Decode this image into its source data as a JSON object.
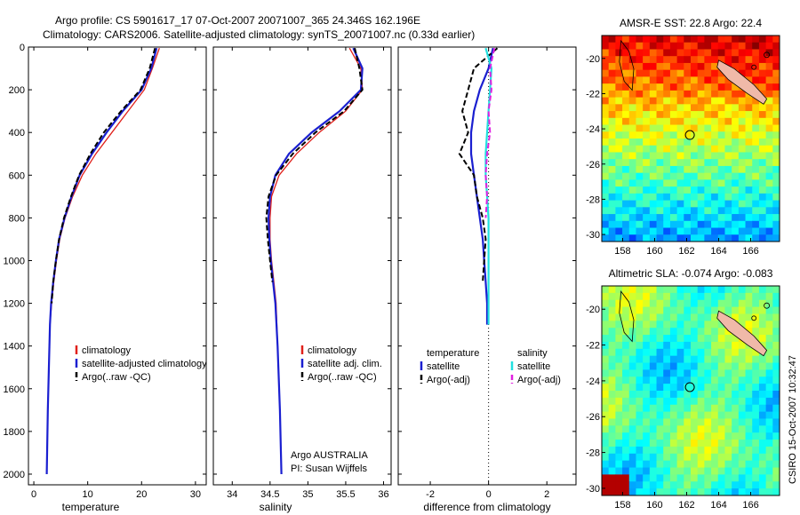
{
  "header": {
    "line1": "Argo profile: CS 5901617_17 07-Oct-2007 20071007_365 24.346S 162.196E",
    "line2": "Climatology: CARS2006. Satellite-adjusted climatology: synTS_20071007.nc (0.33d earlier)"
  },
  "side_label": "CSIRO 15-Oct-2007 10:32:47",
  "colors": {
    "clim": "#e0201a",
    "sat": "#1a1fd0",
    "argo": "#000000",
    "sal_sat": "#22e0e0",
    "sal_argo": "#e020e0"
  },
  "chart_data": [
    {
      "type": "line",
      "id": "temperature",
      "xlabel": "temperature",
      "ylabel": "",
      "xlim": [
        -1,
        32
      ],
      "ylim": [
        2050,
        0
      ],
      "x_ticks": [
        0,
        10,
        20,
        30
      ],
      "y_ticks": [
        0,
        200,
        400,
        600,
        800,
        1000,
        1200,
        1400,
        1600,
        1800,
        2000
      ],
      "legend": [
        "climatology",
        "satellite-adjusted climatology",
        "Argo(..raw -QC)"
      ],
      "series": [
        {
          "name": "climatology",
          "style": "clim",
          "x": [
            23.3,
            22.0,
            20.5,
            17.5,
            14.5,
            11.5,
            9.0,
            7.2,
            5.8,
            4.8,
            4.2,
            3.7,
            3.3,
            3.0,
            2.8,
            2.6,
            2.4
          ],
          "y": [
            5,
            100,
            200,
            300,
            400,
            500,
            600,
            700,
            800,
            900,
            1000,
            1100,
            1200,
            1300,
            1500,
            1700,
            2000
          ]
        },
        {
          "name": "satellite-adjusted climatology",
          "style": "sat",
          "x": [
            22.8,
            21.8,
            20.0,
            16.5,
            13.5,
            10.8,
            8.5,
            7.0,
            5.7,
            4.7,
            4.1,
            3.6,
            3.2,
            3.0,
            2.8,
            2.6,
            2.4
          ],
          "y": [
            5,
            100,
            200,
            300,
            400,
            500,
            600,
            700,
            800,
            900,
            1000,
            1100,
            1200,
            1300,
            1500,
            1700,
            2000
          ]
        },
        {
          "name": "Argo(..raw -QC)",
          "style": "argo",
          "x": [
            22.5,
            21.5,
            19.8,
            16.2,
            13.0,
            10.5,
            8.4,
            6.9,
            5.6,
            4.7,
            4.1,
            3.6,
            3.3
          ],
          "y": [
            5,
            100,
            200,
            300,
            400,
            500,
            600,
            700,
            800,
            900,
            1000,
            1100,
            1200
          ]
        }
      ]
    },
    {
      "type": "line",
      "id": "salinity",
      "xlabel": "salinity",
      "ylabel": "",
      "xlim": [
        33.75,
        36.1
      ],
      "ylim": [
        2050,
        0
      ],
      "x_ticks": [
        34,
        34.5,
        35,
        35.5,
        36
      ],
      "legend": [
        "climatology",
        "satellite adj. clim.",
        "Argo(..raw -QC)"
      ],
      "annotation": [
        "Argo AUSTRALIA",
        "PI: Susan Wijffels"
      ],
      "series": [
        {
          "name": "climatology",
          "style": "clim",
          "x": [
            35.55,
            35.7,
            35.72,
            35.5,
            35.15,
            34.85,
            34.62,
            34.52,
            34.5,
            34.5,
            34.52,
            34.55,
            34.58,
            34.6,
            34.63,
            34.65
          ],
          "y": [
            5,
            100,
            200,
            300,
            400,
            500,
            600,
            700,
            800,
            900,
            1000,
            1100,
            1200,
            1400,
            1700,
            2000
          ]
        },
        {
          "name": "satellite adj. clim.",
          "style": "sat",
          "x": [
            35.6,
            35.72,
            35.7,
            35.42,
            35.05,
            34.75,
            34.57,
            34.5,
            34.48,
            34.49,
            34.51,
            34.54,
            34.57,
            34.6,
            34.63,
            34.65
          ],
          "y": [
            5,
            100,
            200,
            300,
            400,
            500,
            600,
            700,
            800,
            900,
            1000,
            1100,
            1200,
            1400,
            1700,
            2000
          ]
        },
        {
          "name": "Argo(..raw -QC)",
          "style": "argo",
          "x": [
            35.62,
            35.68,
            35.72,
            35.48,
            35.1,
            34.8,
            34.58,
            34.48,
            34.45,
            34.47,
            34.5,
            34.53
          ],
          "y": [
            5,
            100,
            200,
            300,
            400,
            500,
            600,
            700,
            800,
            900,
            1000,
            1100
          ]
        }
      ]
    },
    {
      "type": "line",
      "id": "difference",
      "xlabel": "difference from climatology",
      "ylabel": "",
      "xlim": [
        -3.1,
        3.0
      ],
      "ylim": [
        2050,
        0
      ],
      "x_ticks": [
        -2,
        0,
        2
      ],
      "legend_left": [
        "temperature",
        "satellite",
        "Argo(-adj)"
      ],
      "legend_right": [
        "salinity",
        "satellite",
        "Argo(-adj)"
      ],
      "series": [
        {
          "name": "satellite",
          "group": "temperature",
          "style": "sat",
          "x": [
            0.15,
            0.0,
            -0.3,
            -0.5,
            -0.6,
            -0.6,
            -0.5,
            -0.4,
            -0.3,
            -0.2,
            -0.15,
            -0.1,
            -0.05,
            -0.05
          ],
          "y": [
            5,
            100,
            200,
            300,
            400,
            500,
            600,
            700,
            800,
            900,
            1000,
            1100,
            1200,
            1300
          ]
        },
        {
          "name": "Argo(-adj)",
          "group": "temperature",
          "style": "argo",
          "x": [
            0.3,
            -0.5,
            -0.7,
            -0.9,
            -0.7,
            -1.0,
            -0.5,
            -0.4,
            -0.2,
            -0.1,
            -0.15,
            -0.2
          ],
          "y": [
            5,
            100,
            200,
            300,
            400,
            500,
            600,
            700,
            800,
            900,
            1000,
            1100
          ]
        },
        {
          "name": "satellite",
          "group": "salinity",
          "style": "sal_sat",
          "x": [
            -0.1,
            0.1,
            0.05,
            0.0,
            -0.05,
            -0.1,
            -0.1,
            -0.05,
            0.0,
            0.0,
            0.0,
            0.0,
            0.0,
            0.0
          ],
          "y": [
            5,
            100,
            200,
            300,
            400,
            500,
            600,
            700,
            800,
            900,
            1000,
            1100,
            1200,
            1300
          ]
        },
        {
          "name": "Argo(-adj)",
          "group": "salinity",
          "style": "sal_argo",
          "x": [
            0.2,
            0.05,
            0.1,
            0.0,
            0.05,
            -0.05,
            -0.1,
            -0.05,
            -0.1
          ],
          "y": [
            5,
            100,
            200,
            300,
            400,
            500,
            600,
            700,
            800
          ]
        }
      ]
    },
    {
      "type": "heatmap",
      "id": "sst",
      "title": "AMSR-E SST: 22.8 Argo: 22.4",
      "x_ticks": [
        158,
        160,
        162,
        164,
        166
      ],
      "y_ticks": [
        -20,
        -22,
        -24,
        -26,
        -28,
        -30
      ],
      "xlim": [
        156.7,
        167.8
      ],
      "ylim": [
        -30.4,
        -18.7
      ],
      "marker": [
        162.2,
        -24.35
      ]
    },
    {
      "type": "heatmap",
      "id": "sla",
      "title": "Altimetric SLA: -0.074 Argo: -0.083",
      "x_ticks": [
        158,
        160,
        162,
        164,
        166
      ],
      "y_ticks": [
        -20,
        -22,
        -24,
        -26,
        -28,
        -30
      ],
      "xlim": [
        156.7,
        167.8
      ],
      "ylim": [
        -30.4,
        -18.7
      ],
      "marker": [
        162.2,
        -24.35
      ]
    }
  ]
}
